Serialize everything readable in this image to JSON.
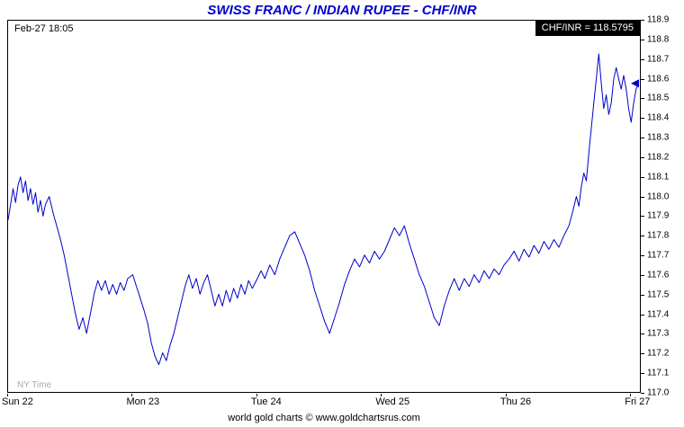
{
  "title": "SWISS FRANC / INDIAN RUPEE - CHF/INR",
  "header": {
    "datetime": "Feb-27 18:05",
    "quote": "CHF/INR = 118.5795"
  },
  "footer": "world gold charts © www.goldchartsrus.com",
  "colors": {
    "title_blue": "#0000CC",
    "line_blue": "#0000CC",
    "quote_bg": "#000000",
    "quote_text": "#FFFFFF",
    "watermark_gray": "#A9A9A9"
  },
  "chart_data": {
    "type": "line",
    "title": "SWISS FRANC / INDIAN RUPEE - CHF/INR",
    "xlabel": "",
    "ylabel": "CHF/INR",
    "timezone_note": "NY Time",
    "grid": false,
    "legend": false,
    "x_domain": [
      0,
      5.07
    ],
    "y_domain": [
      117.0,
      118.9
    ],
    "yticks": [
      "118.9",
      "118.8",
      "118.7",
      "118.6",
      "118.5",
      "118.4",
      "118.3",
      "118.2",
      "118.1",
      "118.0",
      "117.9",
      "117.8",
      "117.7",
      "117.6",
      "117.5",
      "117.4",
      "117.3",
      "117.2",
      "117.1",
      "117.0"
    ],
    "xticks": [
      {
        "day": 0,
        "label": "Sun 22"
      },
      {
        "day": 1,
        "label": "Mon 23"
      },
      {
        "day": 2,
        "label": "Tue 24"
      },
      {
        "day": 3,
        "label": "Wed 25"
      },
      {
        "day": 4,
        "label": "Thu 26"
      },
      {
        "day": 5,
        "label": "Fri 27"
      }
    ],
    "last_price": 118.5795,
    "series": [
      {
        "name": "CHF/INR",
        "color": "#0000CC",
        "points": [
          [
            0.0,
            117.88
          ],
          [
            0.02,
            117.96
          ],
          [
            0.04,
            118.04
          ],
          [
            0.06,
            117.97
          ],
          [
            0.08,
            118.06
          ],
          [
            0.1,
            118.1
          ],
          [
            0.12,
            118.02
          ],
          [
            0.14,
            118.08
          ],
          [
            0.16,
            117.98
          ],
          [
            0.18,
            118.04
          ],
          [
            0.2,
            117.96
          ],
          [
            0.22,
            118.02
          ],
          [
            0.24,
            117.92
          ],
          [
            0.26,
            117.98
          ],
          [
            0.28,
            117.9
          ],
          [
            0.3,
            117.96
          ],
          [
            0.33,
            118.0
          ],
          [
            0.36,
            117.92
          ],
          [
            0.39,
            117.85
          ],
          [
            0.42,
            117.78
          ],
          [
            0.45,
            117.7
          ],
          [
            0.48,
            117.6
          ],
          [
            0.51,
            117.5
          ],
          [
            0.54,
            117.4
          ],
          [
            0.57,
            117.32
          ],
          [
            0.6,
            117.38
          ],
          [
            0.63,
            117.3
          ],
          [
            0.66,
            117.4
          ],
          [
            0.69,
            117.5
          ],
          [
            0.72,
            117.57
          ],
          [
            0.75,
            117.52
          ],
          [
            0.78,
            117.57
          ],
          [
            0.81,
            117.5
          ],
          [
            0.84,
            117.55
          ],
          [
            0.87,
            117.5
          ],
          [
            0.9,
            117.56
          ],
          [
            0.93,
            117.52
          ],
          [
            0.96,
            117.58
          ],
          [
            1.0,
            117.6
          ],
          [
            1.03,
            117.54
          ],
          [
            1.06,
            117.48
          ],
          [
            1.09,
            117.42
          ],
          [
            1.12,
            117.35
          ],
          [
            1.15,
            117.25
          ],
          [
            1.18,
            117.18
          ],
          [
            1.21,
            117.14
          ],
          [
            1.24,
            117.2
          ],
          [
            1.27,
            117.16
          ],
          [
            1.3,
            117.24
          ],
          [
            1.33,
            117.3
          ],
          [
            1.36,
            117.38
          ],
          [
            1.39,
            117.46
          ],
          [
            1.42,
            117.54
          ],
          [
            1.45,
            117.6
          ],
          [
            1.48,
            117.53
          ],
          [
            1.51,
            117.58
          ],
          [
            1.54,
            117.5
          ],
          [
            1.57,
            117.56
          ],
          [
            1.6,
            117.6
          ],
          [
            1.63,
            117.52
          ],
          [
            1.66,
            117.44
          ],
          [
            1.69,
            117.5
          ],
          [
            1.72,
            117.44
          ],
          [
            1.75,
            117.52
          ],
          [
            1.78,
            117.46
          ],
          [
            1.81,
            117.53
          ],
          [
            1.84,
            117.48
          ],
          [
            1.87,
            117.55
          ],
          [
            1.9,
            117.5
          ],
          [
            1.93,
            117.57
          ],
          [
            1.96,
            117.53
          ],
          [
            2.0,
            117.58
          ],
          [
            2.03,
            117.62
          ],
          [
            2.06,
            117.58
          ],
          [
            2.1,
            117.65
          ],
          [
            2.14,
            117.6
          ],
          [
            2.18,
            117.68
          ],
          [
            2.22,
            117.74
          ],
          [
            2.26,
            117.8
          ],
          [
            2.3,
            117.82
          ],
          [
            2.34,
            117.76
          ],
          [
            2.38,
            117.7
          ],
          [
            2.42,
            117.62
          ],
          [
            2.46,
            117.52
          ],
          [
            2.5,
            117.44
          ],
          [
            2.54,
            117.36
          ],
          [
            2.58,
            117.3
          ],
          [
            2.62,
            117.38
          ],
          [
            2.66,
            117.46
          ],
          [
            2.7,
            117.55
          ],
          [
            2.74,
            117.62
          ],
          [
            2.78,
            117.68
          ],
          [
            2.82,
            117.64
          ],
          [
            2.86,
            117.7
          ],
          [
            2.9,
            117.66
          ],
          [
            2.94,
            117.72
          ],
          [
            2.98,
            117.68
          ],
          [
            3.02,
            117.72
          ],
          [
            3.06,
            117.78
          ],
          [
            3.1,
            117.84
          ],
          [
            3.14,
            117.8
          ],
          [
            3.18,
            117.85
          ],
          [
            3.22,
            117.76
          ],
          [
            3.26,
            117.68
          ],
          [
            3.3,
            117.6
          ],
          [
            3.34,
            117.54
          ],
          [
            3.38,
            117.46
          ],
          [
            3.42,
            117.38
          ],
          [
            3.46,
            117.34
          ],
          [
            3.5,
            117.44
          ],
          [
            3.54,
            117.52
          ],
          [
            3.58,
            117.58
          ],
          [
            3.62,
            117.52
          ],
          [
            3.66,
            117.58
          ],
          [
            3.7,
            117.54
          ],
          [
            3.74,
            117.6
          ],
          [
            3.78,
            117.56
          ],
          [
            3.82,
            117.62
          ],
          [
            3.86,
            117.58
          ],
          [
            3.9,
            117.63
          ],
          [
            3.94,
            117.6
          ],
          [
            3.98,
            117.65
          ],
          [
            4.02,
            117.68
          ],
          [
            4.06,
            117.72
          ],
          [
            4.1,
            117.67
          ],
          [
            4.14,
            117.73
          ],
          [
            4.18,
            117.69
          ],
          [
            4.22,
            117.75
          ],
          [
            4.26,
            117.71
          ],
          [
            4.3,
            117.77
          ],
          [
            4.34,
            117.73
          ],
          [
            4.38,
            117.78
          ],
          [
            4.42,
            117.74
          ],
          [
            4.46,
            117.8
          ],
          [
            4.5,
            117.85
          ],
          [
            4.53,
            117.92
          ],
          [
            4.56,
            118.0
          ],
          [
            4.58,
            117.95
          ],
          [
            4.6,
            118.05
          ],
          [
            4.62,
            118.12
          ],
          [
            4.64,
            118.08
          ],
          [
            4.66,
            118.22
          ],
          [
            4.68,
            118.35
          ],
          [
            4.7,
            118.48
          ],
          [
            4.72,
            118.6
          ],
          [
            4.74,
            118.73
          ],
          [
            4.76,
            118.58
          ],
          [
            4.78,
            118.45
          ],
          [
            4.8,
            118.52
          ],
          [
            4.82,
            118.42
          ],
          [
            4.84,
            118.48
          ],
          [
            4.86,
            118.6
          ],
          [
            4.88,
            118.66
          ],
          [
            4.9,
            118.6
          ],
          [
            4.92,
            118.55
          ],
          [
            4.94,
            118.62
          ],
          [
            4.96,
            118.55
          ],
          [
            4.98,
            118.45
          ],
          [
            5.0,
            118.38
          ],
          [
            5.02,
            118.48
          ],
          [
            5.04,
            118.55
          ],
          [
            5.06,
            118.58
          ]
        ]
      }
    ]
  }
}
